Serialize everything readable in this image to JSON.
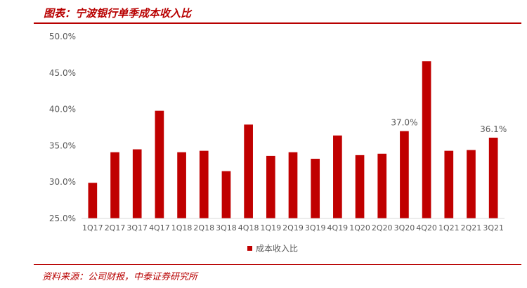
{
  "header": {
    "title": "图表：宁波银行单季成本收入比"
  },
  "footer": {
    "source": "资料来源：公司财报，中泰证券研究所"
  },
  "chart_data": {
    "type": "bar",
    "categories": [
      "1Q17",
      "2Q17",
      "3Q17",
      "4Q17",
      "1Q18",
      "2Q18",
      "3Q18",
      "4Q18",
      "1Q19",
      "2Q19",
      "3Q19",
      "4Q19",
      "1Q20",
      "2Q20",
      "3Q20",
      "4Q20",
      "1Q21",
      "2Q21",
      "3Q21"
    ],
    "series": [
      {
        "name": "成本收入比",
        "values": [
          29.9,
          34.1,
          34.5,
          39.8,
          34.1,
          34.3,
          31.5,
          37.9,
          33.6,
          34.1,
          33.2,
          36.4,
          33.7,
          33.9,
          37.0,
          46.6,
          34.3,
          34.4,
          36.1
        ]
      }
    ],
    "data_labels": [
      {
        "category": "3Q20",
        "text": "37.0%"
      },
      {
        "category": "3Q21",
        "text": "36.1%"
      }
    ],
    "yticks": [
      "25.0%",
      "30.0%",
      "35.0%",
      "40.0%",
      "45.0%",
      "50.0%"
    ],
    "ylim": [
      25,
      50
    ],
    "ystep": 5,
    "grid": false,
    "legend_position": "bottom",
    "colors": {
      "bar": "#c00000",
      "axis": "#d9d9d9",
      "tick_text": "#595959",
      "accent": "#b80000"
    }
  }
}
